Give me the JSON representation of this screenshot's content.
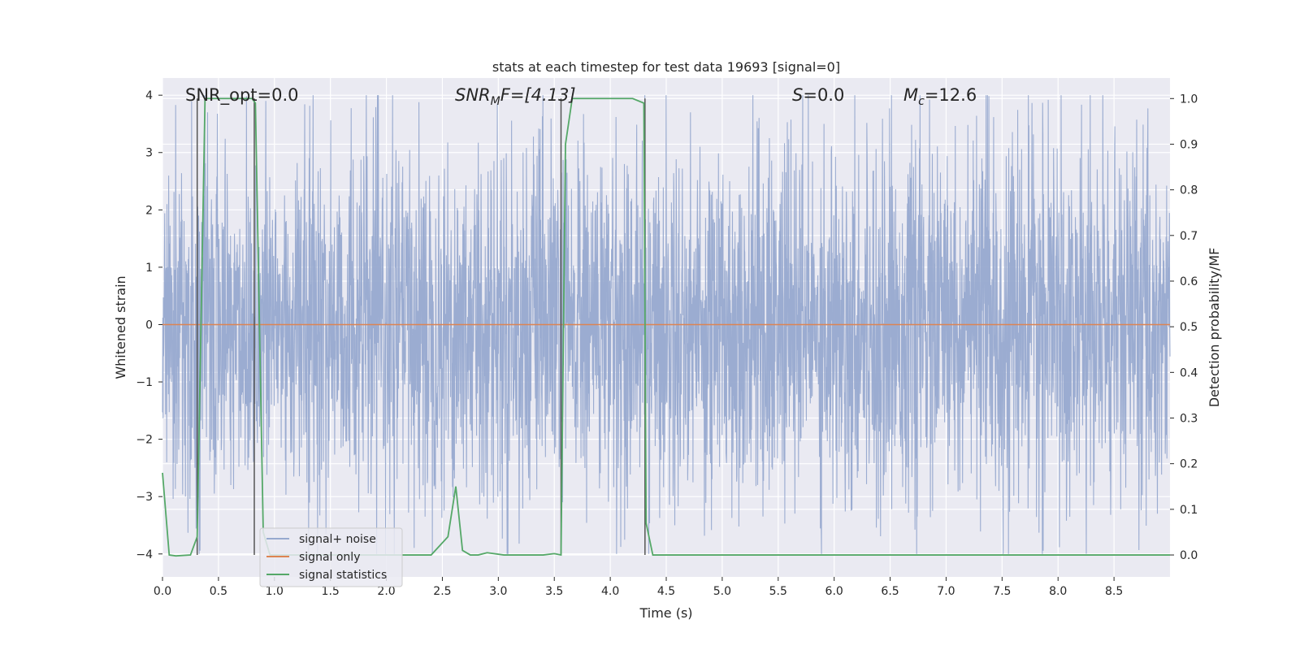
{
  "chart_data": {
    "type": "line",
    "title": "stats at each timestep for test data 19693 [signal=0]",
    "xlabel": "Time (s)",
    "ylabel_left": "Whitened strain",
    "ylabel_right": "Detection probability/MF",
    "xlim": [
      0.0,
      9.0
    ],
    "ylim_left": [
      -4.4,
      4.3
    ],
    "ylim_right": [
      -0.048,
      1.045
    ],
    "x_ticks": [
      "0.0",
      "0.5",
      "1.0",
      "1.5",
      "2.0",
      "2.5",
      "3.0",
      "3.5",
      "4.0",
      "4.5",
      "5.0",
      "5.5",
      "6.0",
      "6.5",
      "7.0",
      "7.5",
      "8.0",
      "8.5"
    ],
    "x_tick_values": [
      0.0,
      0.5,
      1.0,
      1.5,
      2.0,
      2.5,
      3.0,
      3.5,
      4.0,
      4.5,
      5.0,
      5.5,
      6.0,
      6.5,
      7.0,
      7.5,
      8.0,
      8.5
    ],
    "y_left_ticks": [
      "4",
      "3",
      "2",
      "1",
      "0",
      "−1",
      "−2",
      "−3",
      "−4"
    ],
    "y_left_tick_values": [
      4,
      3,
      2,
      1,
      0,
      -1,
      -2,
      -3,
      -4
    ],
    "y_right_ticks": [
      "1.0",
      "0.9",
      "0.8",
      "0.7",
      "0.6",
      "0.5",
      "0.4",
      "0.3",
      "0.2",
      "0.1",
      "0.0"
    ],
    "y_right_tick_values": [
      1.0,
      0.9,
      0.8,
      0.7,
      0.6,
      0.5,
      0.4,
      0.3,
      0.2,
      0.1,
      0.0
    ],
    "grid": true,
    "legend_position": "lower-left",
    "annotations": {
      "snr_opt": "SNR_opt=0.0",
      "snr_mf_base": "SNR",
      "snr_mf_sub": "M",
      "snr_mf_rest": "F=[4.13]",
      "s_label_italic": "S",
      "s_label_rest": "=0.0",
      "mc_base": "M",
      "mc_sub": "c",
      "mc_rest": "=12.6"
    },
    "series": [
      {
        "name": "signal+ noise",
        "color": "#97a9cf",
        "axis": "left",
        "description_sampling": "noise",
        "amplitude_std": 1.55
      },
      {
        "name": "signal only",
        "color": "#dd8452",
        "axis": "left",
        "x": [
          0.0,
          9.0
        ],
        "y": [
          0.0,
          0.0
        ]
      },
      {
        "name": "signal statistics",
        "color": "#55a868",
        "axis": "right",
        "x": [
          0.0,
          0.06,
          0.12,
          0.25,
          0.31,
          0.38,
          0.42,
          0.46,
          0.5,
          0.55,
          0.6,
          0.7,
          0.8,
          0.83,
          0.87,
          0.9,
          0.96,
          1.0,
          1.2,
          1.6,
          2.0,
          2.4,
          2.55,
          2.62,
          2.68,
          2.75,
          2.82,
          2.9,
          3.05,
          3.2,
          3.4,
          3.5,
          3.56,
          3.6,
          3.66,
          3.72,
          4.0,
          4.2,
          4.3,
          4.32,
          4.38,
          4.45,
          4.6,
          5.0,
          6.0,
          7.0,
          8.0,
          9.0
        ],
        "y": [
          0.18,
          0.0,
          -0.002,
          0.0,
          0.04,
          1.0,
          1.0,
          1.0,
          1.0,
          1.0,
          1.0,
          1.0,
          1.0,
          0.99,
          0.45,
          0.05,
          0.0,
          0.0,
          0.0,
          0.0,
          0.0,
          0.0,
          0.04,
          0.15,
          0.01,
          0.0,
          0.0,
          0.005,
          0.0,
          0.0,
          0.0,
          0.003,
          0.0,
          0.9,
          1.0,
          1.0,
          1.0,
          1.0,
          0.99,
          0.07,
          0.0,
          0.0,
          0.0,
          0.0,
          0.0,
          0.0,
          0.0,
          0.0
        ]
      }
    ],
    "vertical_markers_x": [
      0.31,
      0.82,
      3.56,
      4.31
    ],
    "vertical_marker_color": "#555555"
  }
}
